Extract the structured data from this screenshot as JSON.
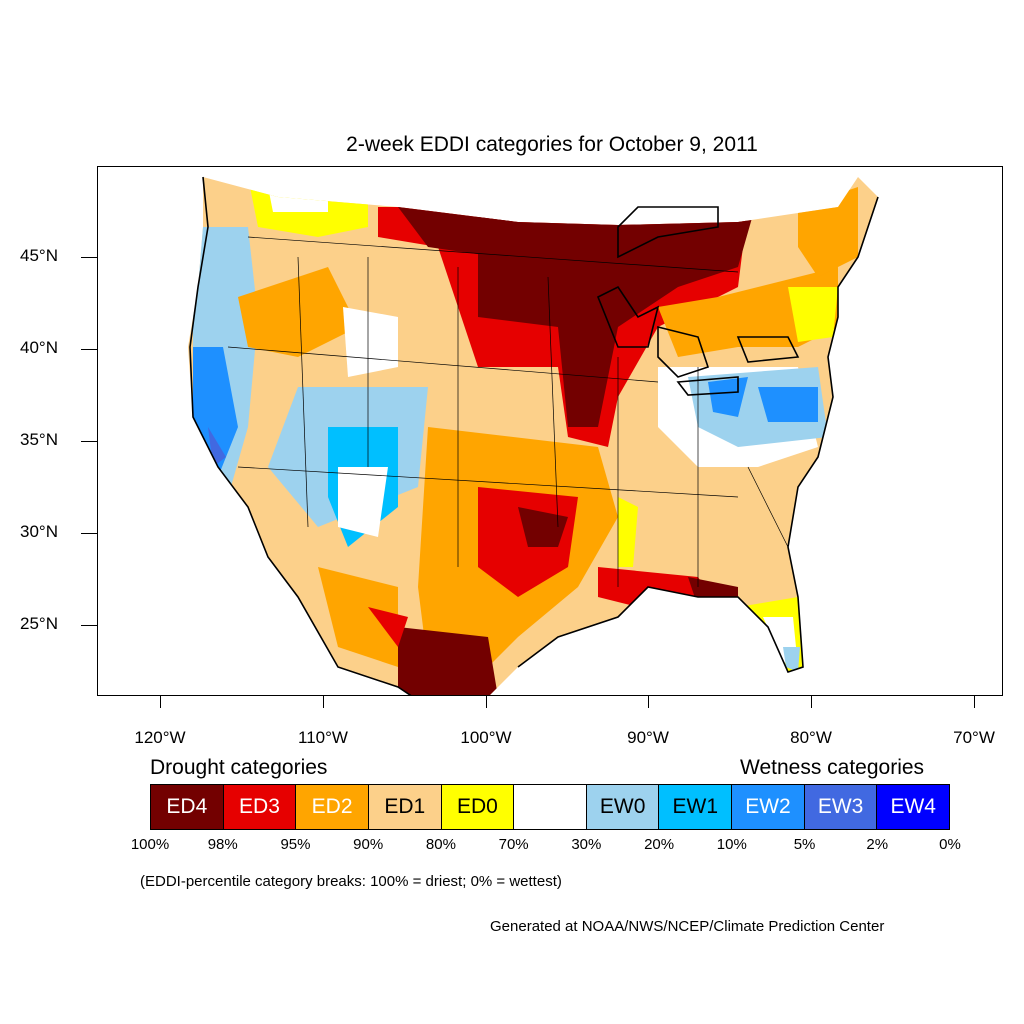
{
  "title": "2-week EDDI categories for October 9, 2011",
  "latitude_labels": [
    "45°N",
    "40°N",
    "35°N",
    "30°N",
    "25°N"
  ],
  "longitude_labels": [
    "120°W",
    "110°W",
    "100°W",
    "90°W",
    "80°W",
    "70°W"
  ],
  "legend": {
    "drought_heading": "Drought categories",
    "wetness_heading": "Wetness categories",
    "categories": [
      {
        "label": "ED4",
        "color": "#730000",
        "text_color": "#ffffff"
      },
      {
        "label": "ED3",
        "color": "#e60000",
        "text_color": "#ffffff"
      },
      {
        "label": "ED2",
        "color": "#ffa500",
        "text_color": "#ffffff"
      },
      {
        "label": "ED1",
        "color": "#fcd08a",
        "text_color": "#000000"
      },
      {
        "label": "ED0",
        "color": "#ffff00",
        "text_color": "#000000"
      },
      {
        "label": "",
        "color": "#ffffff",
        "text_color": "#000000"
      },
      {
        "label": "EW0",
        "color": "#9dd2ee",
        "text_color": "#000000"
      },
      {
        "label": "EW1",
        "color": "#00bfff",
        "text_color": "#000000"
      },
      {
        "label": "EW2",
        "color": "#1e90ff",
        "text_color": "#ffffff"
      },
      {
        "label": "EW3",
        "color": "#4169e1",
        "text_color": "#ffffff"
      },
      {
        "label": "EW4",
        "color": "#0000ff",
        "text_color": "#ffffff"
      }
    ],
    "breaks": [
      "100%",
      "98%",
      "95%",
      "90%",
      "80%",
      "70%",
      "30%",
      "20%",
      "10%",
      "5%",
      "2%",
      "0%"
    ]
  },
  "note": "(EDDI-percentile category breaks: 100% = driest; 0% = wettest)",
  "credit": "Generated at NOAA/NWS/NCEP/Climate Prediction Center"
}
